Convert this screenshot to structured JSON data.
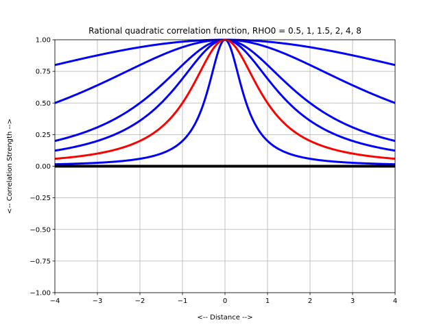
{
  "chart_data": {
    "type": "line",
    "title": "Rational quadratic correlation function, RHO0 = 0.5, 1, 1.5, 2, 4, 8",
    "xlabel": "<-- Distance -->",
    "ylabel": "<-- Correlation Strength -->",
    "xlim": [
      -4,
      4
    ],
    "ylim": [
      -1,
      1
    ],
    "xticks": [
      -4,
      -3,
      -2,
      -1,
      0,
      1,
      2,
      3,
      4
    ],
    "xtick_labels": [
      "−4",
      "−3",
      "−2",
      "−1",
      "0",
      "1",
      "2",
      "3",
      "4"
    ],
    "yticks": [
      -1,
      -0.75,
      -0.5,
      -0.25,
      0,
      0.25,
      0.5,
      0.75,
      1
    ],
    "ytick_labels": [
      "−1.00",
      "−0.75",
      "−0.50",
      "−0.25",
      "0.00",
      "0.25",
      "0.50",
      "0.75",
      "1.00"
    ],
    "grid": true,
    "function": "rho(x) = 1 / (1 + (x / rho0)^2)",
    "rho0_values": [
      0.5,
      1,
      1.5,
      2,
      4,
      8
    ],
    "series": [
      {
        "rho0": 0.5,
        "color": "#0000ff",
        "x": [
          -4,
          -3,
          -2,
          -1,
          -0.5,
          0,
          0.5,
          1,
          2,
          3,
          4
        ],
        "y": [
          0.015,
          0.027,
          0.059,
          0.2,
          0.5,
          1,
          0.5,
          0.2,
          0.059,
          0.027,
          0.015
        ]
      },
      {
        "rho0": 1,
        "color": "#ff0000",
        "x": [
          -4,
          -3,
          -2,
          -1,
          0,
          1,
          2,
          3,
          4
        ],
        "y": [
          0.059,
          0.1,
          0.2,
          0.5,
          1,
          0.5,
          0.2,
          0.1,
          0.059
        ]
      },
      {
        "rho0": 1.5,
        "color": "#0000ff",
        "x": [
          -4,
          -3,
          -2,
          -1,
          0,
          1,
          2,
          3,
          4
        ],
        "y": [
          0.123,
          0.2,
          0.36,
          0.692,
          1,
          0.692,
          0.36,
          0.2,
          0.123
        ]
      },
      {
        "rho0": 2,
        "color": "#0000ff",
        "x": [
          -4,
          -3,
          -2,
          -1,
          0,
          1,
          2,
          3,
          4
        ],
        "y": [
          0.2,
          0.308,
          0.5,
          0.8,
          1,
          0.8,
          0.5,
          0.308,
          0.2
        ]
      },
      {
        "rho0": 4,
        "color": "#0000ff",
        "x": [
          -4,
          -3,
          -2,
          -1,
          0,
          1,
          2,
          3,
          4
        ],
        "y": [
          0.5,
          0.64,
          0.8,
          0.941,
          1,
          0.941,
          0.8,
          0.64,
          0.5
        ]
      },
      {
        "rho0": 8,
        "color": "#0000ff",
        "x": [
          -4,
          -3,
          -2,
          -1,
          0,
          1,
          2,
          3,
          4
        ],
        "y": [
          0.8,
          0.877,
          0.941,
          0.985,
          1,
          0.985,
          0.941,
          0.877,
          0.8
        ]
      }
    ],
    "baseline": {
      "y": 0,
      "color": "#000000"
    }
  }
}
